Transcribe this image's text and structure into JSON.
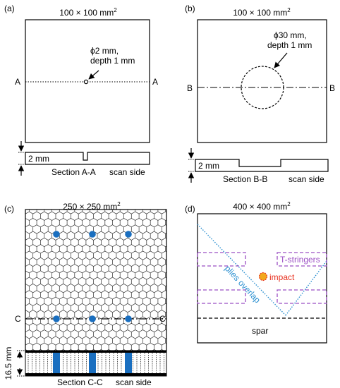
{
  "panel_a": {
    "tag": "(a)",
    "size": "100 × 100 mm",
    "size_sup": "2",
    "hole_l1": "ϕ2 mm,",
    "hole_l2": "depth 1 mm",
    "sec_left": "A",
    "sec_right": "A",
    "depth": "2 mm",
    "section": "Section A-A",
    "scan": "scan side"
  },
  "panel_b": {
    "tag": "(b)",
    "size": "100 × 100 mm",
    "size_sup": "2",
    "hole_l1": "ϕ30 mm,",
    "hole_l2": "depth 1 mm",
    "sec_left": "B",
    "sec_right": "B",
    "depth": "2 mm",
    "section": "Section B-B",
    "scan": "scan side"
  },
  "panel_c": {
    "tag": "(c)",
    "size": "250 × 250 mm",
    "size_sup": "2",
    "sec_left": "C",
    "sec_right": "C",
    "thickness": "16.5 mm",
    "section": "Section C-C",
    "scan": "scan side"
  },
  "panel_d": {
    "tag": "(d)",
    "size": "400 × 400 mm",
    "size_sup": "2",
    "stringers": "T-stringers",
    "impact": "impact",
    "plies": "plies overlap",
    "spar": "spar"
  },
  "colors": {
    "insert_blue": "#1a6fc0",
    "stringer_purple": "#9b4fc4",
    "plies_blue": "#2a8fd0",
    "impact_fill": "#f2a81d",
    "impact_text": "#e8301f"
  }
}
